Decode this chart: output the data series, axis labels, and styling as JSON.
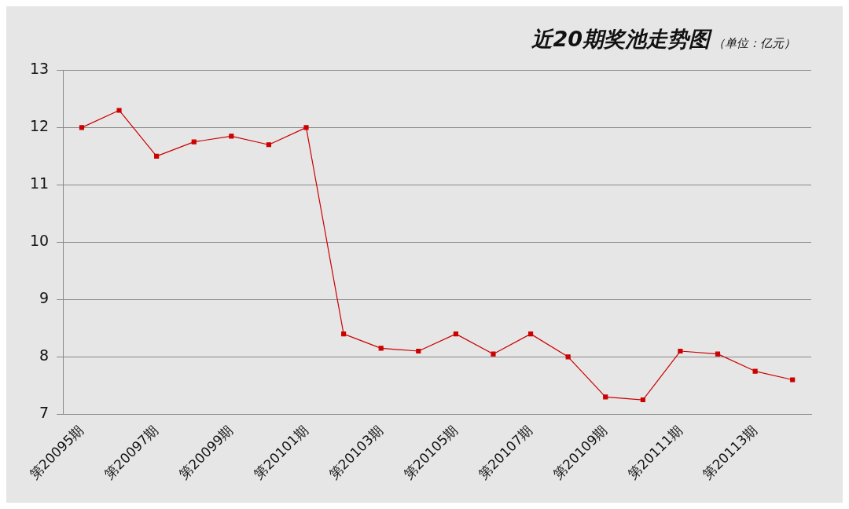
{
  "chart_data": {
    "type": "line",
    "title": "近20期奖池走势图",
    "subtitle": "（单位：亿元）",
    "categories": [
      "第20095期",
      null,
      "第20097期",
      null,
      "第20099期",
      null,
      "第20101期",
      null,
      "第20103期",
      null,
      "第20105期",
      null,
      "第20107期",
      null,
      "第20109期",
      null,
      "第20111期",
      null,
      "第20113期",
      null
    ],
    "series": [
      {
        "color": "#cc0000",
        "values": [
          12.0,
          12.3,
          11.5,
          11.75,
          11.85,
          11.7,
          12.0,
          8.4,
          8.15,
          8.1,
          8.4,
          8.05,
          8.4,
          8.0,
          7.3,
          7.25,
          8.1,
          8.05,
          7.75,
          7.6
        ]
      }
    ],
    "ylim": [
      7,
      13
    ],
    "yticks": [
      7,
      8,
      9,
      10,
      11,
      12,
      13
    ],
    "grid": "y",
    "legend": false,
    "marker": "square",
    "line_style": "solid"
  }
}
